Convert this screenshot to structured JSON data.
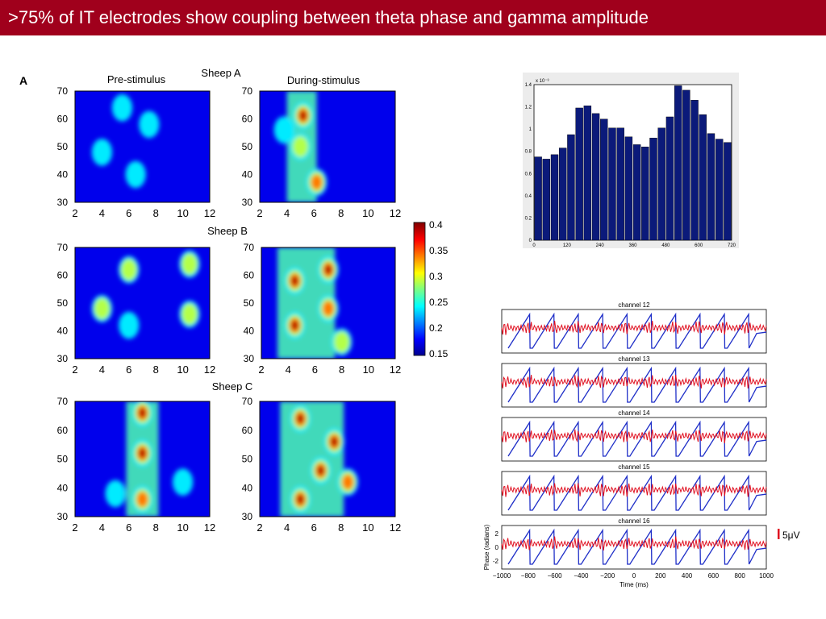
{
  "slide": {
    "title": ">75% of IT electrodes show coupling between theta phase and gamma amplitude"
  },
  "panel_label": "A",
  "comodulograms": {
    "col_titles": [
      "Pre-stimulus",
      "During-stimulus"
    ],
    "row_titles": [
      "Sheep A",
      "Sheep B",
      "Sheep C"
    ],
    "x_ticks": [
      "2",
      "4",
      "6",
      "8",
      "10",
      "12"
    ],
    "y_ticks": [
      "30",
      "40",
      "50",
      "60",
      "70"
    ],
    "colorbar_ticks": [
      "0.4",
      "0.35",
      "0.3",
      "0.25",
      "0.2",
      "0.15"
    ]
  },
  "histogram": {
    "y_multiplier": "x 10⁻³",
    "y_ticks": [
      "0",
      "0.2",
      "0.4",
      "0.6",
      "0.8",
      "1",
      "1.2",
      "1.4"
    ],
    "x_ticks": [
      "0",
      "120",
      "240",
      "360",
      "480",
      "600",
      "720"
    ]
  },
  "traces": {
    "channels": [
      "channel 12",
      "channel 13",
      "channel 14",
      "channel 15",
      "channel 16"
    ],
    "y_label": "Phase (radians)",
    "y_ticks": [
      "2",
      "0",
      "-2"
    ],
    "x_ticks": [
      "−1000",
      "−800",
      "−600",
      "−400",
      "−200",
      "0",
      "200",
      "400",
      "600",
      "800",
      "1000"
    ],
    "x_label": "Time (ms)",
    "scale_bar": "5μV"
  },
  "chart_data": [
    {
      "type": "bar",
      "categories": [
        "0",
        "30",
        "60",
        "90",
        "120",
        "150",
        "180",
        "210",
        "240",
        "270",
        "300",
        "330",
        "360",
        "390",
        "420",
        "450",
        "480",
        "510",
        "540",
        "570",
        "600",
        "630",
        "660",
        "690"
      ],
      "values": [
        0.75,
        0.73,
        0.77,
        0.83,
        0.95,
        1.19,
        1.21,
        1.14,
        1.09,
        1.01,
        1.01,
        0.93,
        0.86,
        0.84,
        0.92,
        1.01,
        1.11,
        1.39,
        1.35,
        1.26,
        1.13,
        0.96,
        0.91,
        0.88
      ],
      "ylim": [
        0,
        1.4
      ],
      "xlim": [
        0,
        720
      ],
      "colors": {
        "bar": "#0b1a7a"
      }
    },
    {
      "type": "line",
      "channels": [
        "channel 12",
        "channel 13",
        "channel 14",
        "channel 15",
        "channel 16"
      ],
      "xlim": [
        -1000,
        1000
      ],
      "ylim": [
        -3,
        3
      ],
      "theta_cycles": 10,
      "colors": {
        "phase": "#1f2fc8",
        "gamma": "#e01020"
      }
    },
    {
      "type": "heatmap",
      "colorbar_range": [
        0.15,
        0.4
      ],
      "xlim": [
        2,
        12
      ],
      "ylim": [
        30,
        70
      ]
    }
  ]
}
